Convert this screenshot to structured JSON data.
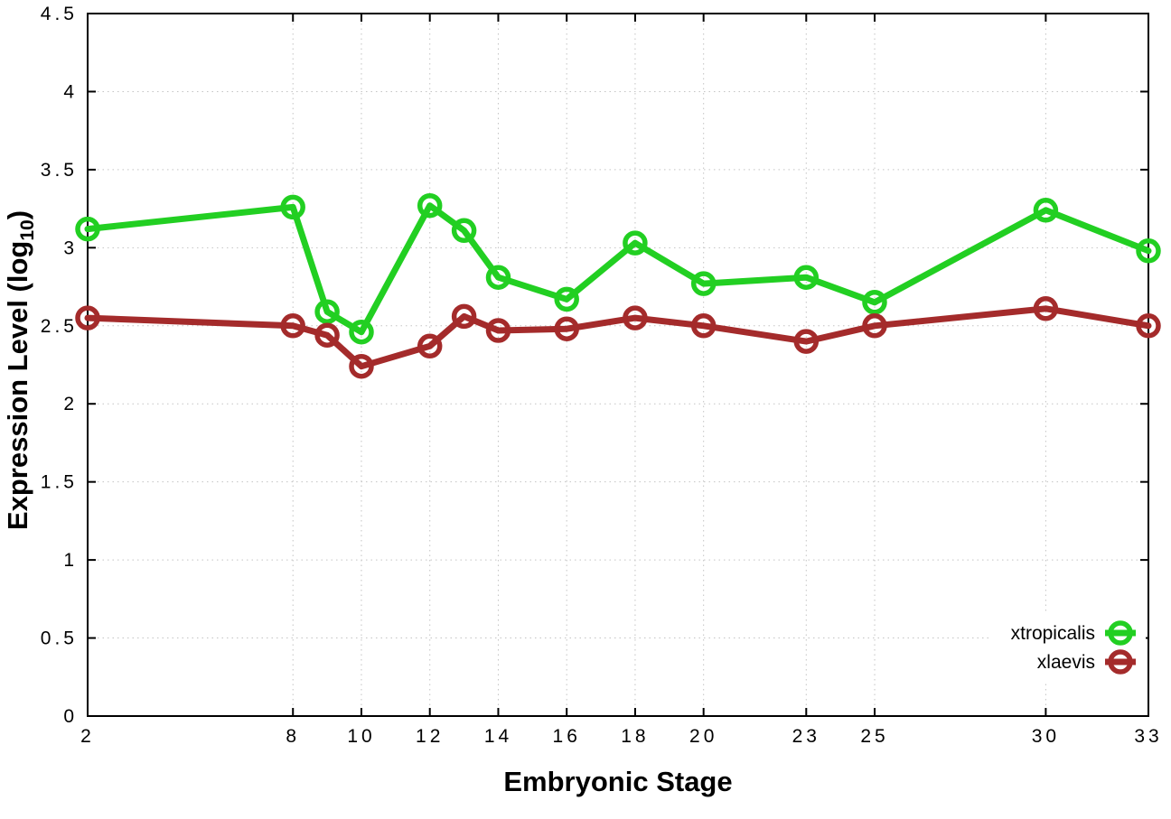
{
  "figure": {
    "background": "#ffffff",
    "border_color": "#000000",
    "text_color": "#000000"
  },
  "axes": {
    "x_title": "Embryonic Stage",
    "y_title_prefix": "Expression Level (log",
    "y_title_sub": "10",
    "y_title_suffix": ")"
  },
  "chart_data": {
    "type": "line",
    "x": [
      2,
      8,
      9,
      10,
      12,
      13,
      14,
      16,
      18,
      20,
      23,
      25,
      30,
      33
    ],
    "series": [
      {
        "name": "xtropicalis",
        "color": "#22CF22",
        "values": [
          3.12,
          3.26,
          2.59,
          2.46,
          3.27,
          3.11,
          2.81,
          2.67,
          3.03,
          2.77,
          2.81,
          2.65,
          3.24,
          2.98
        ]
      },
      {
        "name": "xlaevis",
        "color": "#A42B2B",
        "values": [
          2.55,
          2.5,
          2.44,
          2.24,
          2.37,
          2.56,
          2.47,
          2.48,
          2.55,
          2.5,
          2.4,
          2.5,
          2.61,
          2.5
        ]
      }
    ],
    "xlabel": "Embryonic Stage",
    "ylabel": "Expression Level (log10)",
    "xlim": [
      2,
      33
    ],
    "ylim": [
      0,
      4.5
    ],
    "xticks": [
      2,
      8,
      10,
      12,
      14,
      16,
      18,
      20,
      23,
      25,
      30,
      33
    ],
    "yticks": [
      0,
      0.5,
      1,
      1.5,
      2,
      2.5,
      3,
      3.5,
      4,
      4.5
    ],
    "grid": true,
    "grid_color": "#c3c3c3",
    "legend_position": "inside-bottom-right",
    "marker": "open-circle",
    "line_width": 7,
    "marker_radius": 11,
    "marker_stroke_width": 5.5
  }
}
